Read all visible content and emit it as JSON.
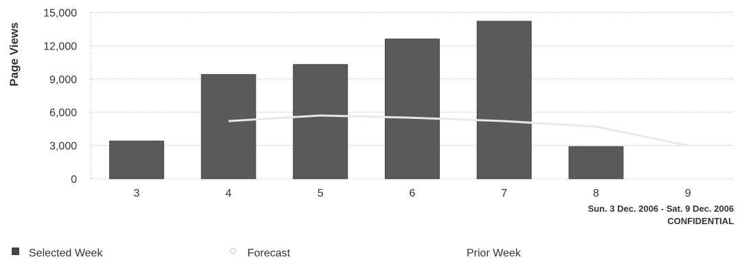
{
  "chart_data": {
    "type": "bar",
    "title": "",
    "xlabel": "",
    "ylabel": "Page Views",
    "ylim": [
      0,
      15000
    ],
    "yticks": [
      0,
      3000,
      6000,
      9000,
      12000,
      15000
    ],
    "ytick_labels": [
      "0",
      "3,000",
      "6,000",
      "9,000",
      "12,000",
      "15,000"
    ],
    "grid": true,
    "categories": [
      "3",
      "4",
      "5",
      "6",
      "7",
      "8",
      "9"
    ],
    "series": [
      {
        "name": "Selected Week",
        "type": "bar",
        "values": [
          3400,
          9400,
          10300,
          12600,
          14200,
          2900,
          null
        ]
      },
      {
        "name": "Prior Week",
        "type": "line",
        "values": [
          null,
          5200,
          5700,
          5500,
          5200,
          4700,
          3000
        ]
      }
    ],
    "legend_position": "bottom",
    "colors": {
      "bar": "#5a5a5a",
      "line": "#e8e8e8",
      "grid": "#bdbdbd"
    }
  },
  "annotations": {
    "date_range": "Sun. 3 Dec. 2006 - Sat. 9 Dec. 2006",
    "confidential": "CONFIDENTIAL"
  },
  "legend": {
    "items": [
      {
        "label": "Selected Week",
        "icon": "square"
      },
      {
        "label": "Forecast",
        "icon": "circle"
      },
      {
        "label": "Prior Week",
        "icon": "none"
      }
    ]
  }
}
